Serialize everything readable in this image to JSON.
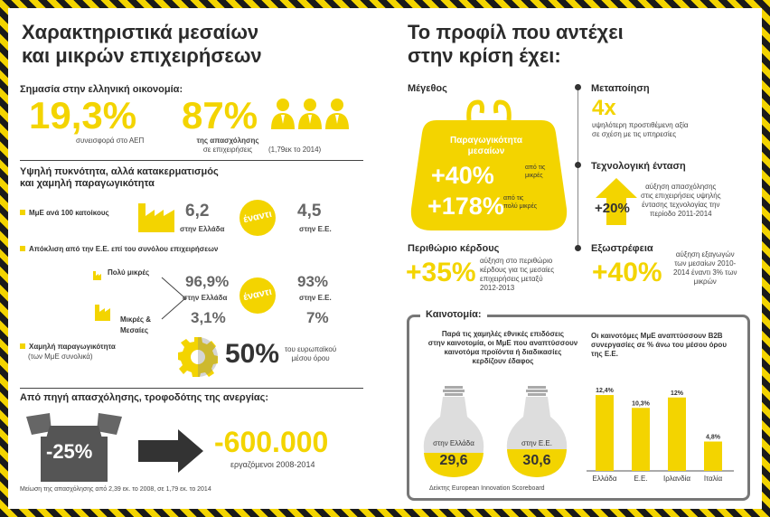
{
  "left": {
    "title_line1": "Χαρακτηριστικά μεσαίων",
    "title_line2": "και μικρών επιχειρήσεων",
    "importance": {
      "heading": "Σημασία στην ελληνική οικονομία:",
      "gdp_value": "19,3%",
      "gdp_caption": "συνεισφορά στο ΑΕΠ",
      "emp_value": "87%",
      "emp_caption_bold": "της απασχόλησης",
      "emp_caption2": "σε επιχειρήσεις",
      "emp_caption3": "(1,79εκ το 2014)"
    },
    "density": {
      "heading1": "Υψηλή πυκνότητα, αλλά κατακερματισμός",
      "heading2": "και χαμηλή παραγωγικότητα",
      "per100_label": "ΜμΕ ανά 100 κατοίκους",
      "gr_val": "6,2",
      "gr_label": "στην Ελλάδα",
      "vs": "έναντι",
      "eu_val": "4,5",
      "eu_label": "στην Ε.Ε.",
      "deviation_label": "Απόκλιση από την Ε.Ε. επί του συνόλου επιχειρήσεων",
      "very_small": "Πολύ μικρές",
      "small_med1": "Μικρές &",
      "small_med2": "Μεσαίες",
      "gr_vs_val": "96,9%",
      "gr_vs_label": "στην Ελλάδα",
      "eu_vs_val": "93%",
      "eu_vs_label": "στην Ε.Ε.",
      "gr_sm_val": "3,1%",
      "eu_sm_val": "7%",
      "low_prod1": "Χαμηλή παραγωγικότητα",
      "low_prod2": "(των ΜμΕ συνολικά)",
      "prod_val": "50%",
      "prod_cap1": "του ευρωπαϊκού",
      "prod_cap2": "μέσου όρου"
    },
    "unemployment": {
      "heading": "Από πηγή απασχόλησης, τροφοδότης της ανεργίας:",
      "box_val": "-25%",
      "jobs_val": "-600.000",
      "jobs_caption": "εργαζόμενοι 2008-2014",
      "footnote": "Μείωση της απασχόλησης από 2,39 εκ. το 2008, σε 1,79 εκ. το 2014"
    }
  },
  "right": {
    "title_line1": "Το προφίλ που αντέχει",
    "title_line2": "στην κρίση έχει:",
    "size": {
      "heading": "Μέγεθος",
      "purse_title1": "Παραγωγικότητα",
      "purse_title2": "μεσαίων",
      "v1": "+40%",
      "v1_cap1": "από τις",
      "v1_cap2": "μικρές",
      "v2": "+178%",
      "v2_cap1": "από τις",
      "v2_cap2": "πολύ μικρές"
    },
    "manufacturing": {
      "heading": "Μεταποίηση",
      "value": "4x",
      "cap1": "υψηλότερη προστιθέμενη αξία",
      "cap2": "σε σχέση με τις υπηρεσίες"
    },
    "tech": {
      "heading": "Τεχνολογική ένταση",
      "value": "+20%",
      "cap1": "αύξηση απασχόλησης",
      "cap2": "στις επιχειρήσεις υψηλής",
      "cap3": "έντασης τεχνολογίας την",
      "cap4": "περίοδο 2011-2014"
    },
    "margin": {
      "heading": "Περιθώριο κέρδους",
      "value": "+35%",
      "cap1": "αύξηση στο περιθώριο",
      "cap2": "κέρδους για τις μεσαίες",
      "cap3": "επιχειρήσεις μεταξύ",
      "cap4": "2012-2013"
    },
    "export": {
      "heading": "Εξωστρέφεια",
      "value": "+40%",
      "cap1": "αύξηση εξαγωγών",
      "cap2": "των μεσαίων 2010-",
      "cap3": "2014 έναντι 3% των",
      "cap4": "μικρών"
    },
    "innovation": {
      "heading": "Καινοτομία:",
      "text1": "Παρά τις χαμηλές εθνικές επιδόσεις",
      "text2": "στην καινοτομία, οι ΜμΕ που αναπτύσσουν",
      "text3": "καινοτόμα προϊόντα ή διαδικασίες",
      "text4": "κερδίζουν έδαφος",
      "bulb1_label": "στην Ελλάδα",
      "bulb1_val": "29,6",
      "bulb2_label": "στην Ε.Ε.",
      "bulb2_val": "30,6",
      "source": "Δείκτης European Innovation Scoreboard",
      "chart_title1": "Οι καινοτόμες ΜμΕ αναπτύσσουν Β2Β",
      "chart_title2": "συνεργασίες σε % άνω του μέσου όρου",
      "chart_title3": "της Ε.Ε."
    }
  },
  "chart_data": {
    "type": "bar",
    "categories": [
      "Ελλάδα",
      "Ε.Ε.",
      "Ιρλανδία",
      "Ιταλία"
    ],
    "values": [
      12.4,
      10.3,
      12,
      4.8
    ],
    "labels": [
      "12,4%",
      "10,3%",
      "12%",
      "4,8%"
    ],
    "ylim": [
      0,
      13
    ],
    "color": "#f3d400"
  }
}
